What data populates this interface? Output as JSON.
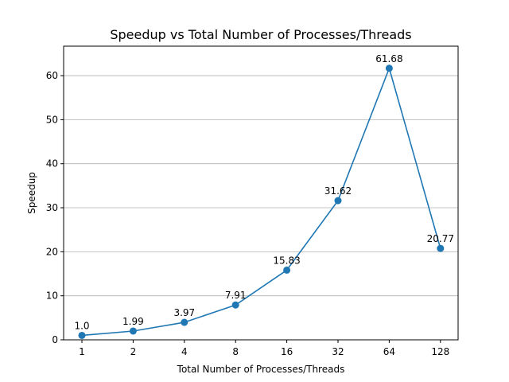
{
  "chart_data": {
    "type": "line",
    "title": "Speedup vs Total Number of Processes/Threads",
    "xlabel": "Total Number of Processes/Threads",
    "ylabel": "Speedup",
    "categories": [
      "1",
      "2",
      "4",
      "8",
      "16",
      "32",
      "64",
      "128"
    ],
    "series": [
      {
        "values": [
          1.0,
          1.99,
          3.97,
          7.91,
          15.83,
          31.62,
          61.68,
          20.77
        ],
        "data_labels": [
          "1.0",
          "1.99",
          "3.97",
          "7.91",
          "15.83",
          "31.62",
          "61.68",
          "20.77"
        ],
        "color": "#1f77b4",
        "marker": "circle"
      }
    ],
    "ylim": [
      0,
      66.7
    ],
    "yticks": [
      0,
      10,
      20,
      30,
      40,
      50,
      60
    ],
    "ytick_labels": [
      "0",
      "10",
      "20",
      "30",
      "40",
      "50",
      "60"
    ],
    "grid": "horizontal",
    "legend": "none"
  }
}
